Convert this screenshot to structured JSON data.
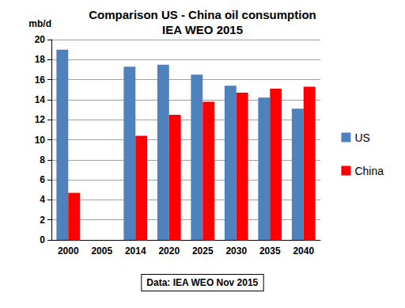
{
  "chart_data": {
    "type": "bar",
    "title": "Comparison US - China oil consumption",
    "subtitle": "IEA WEO 2015",
    "ylabel": "mb/d",
    "annotation": "Data: IEA WEO Nov 2015",
    "categories": [
      "2000",
      "2005",
      "2014",
      "2020",
      "2025",
      "2030",
      "2035",
      "2040"
    ],
    "series": [
      {
        "name": "US",
        "color": "#4f81bd",
        "values": [
          19.0,
          null,
          17.3,
          17.5,
          16.5,
          15.4,
          14.2,
          13.1
        ]
      },
      {
        "name": "China",
        "color": "#ff0000",
        "values": [
          4.7,
          null,
          10.4,
          12.5,
          13.8,
          14.7,
          15.1,
          15.3
        ]
      }
    ],
    "ylim": [
      0,
      20
    ],
    "yticks": [
      0,
      2,
      4,
      6,
      8,
      10,
      12,
      14,
      16,
      18,
      20
    ],
    "grid": true,
    "legend": "right"
  }
}
